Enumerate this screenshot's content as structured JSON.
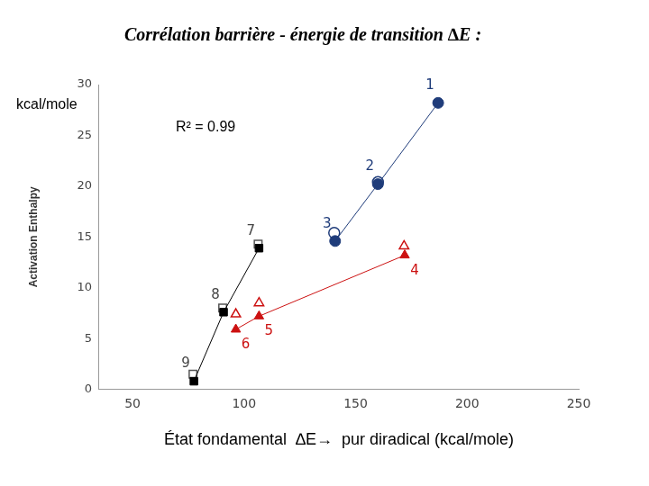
{
  "chart_data": {
    "type": "scatter",
    "title": "Corrélation barrière - énergie de transition ∆E :",
    "x_label": "État fondamental  ∆E→  pur diradical (kcal/mole)",
    "y_label": "Activation Enthalpy",
    "annotations": [
      {
        "text": "kcal/mole"
      },
      {
        "text": "R² = 0.99"
      }
    ],
    "xlim": [
      35,
      250
    ],
    "xticks": [
      50,
      100,
      150,
      200,
      250
    ],
    "ylim": [
      0,
      30
    ],
    "yticks": [
      0,
      5,
      10,
      15,
      20,
      25,
      30
    ],
    "grid": false,
    "series": [
      {
        "color": "#1f3c7a",
        "marker": "circle",
        "line_style": "solid",
        "x": [
          187,
          160,
          140.8
        ],
        "values": [
          28.2,
          20.2,
          14.6
        ],
        "point_labels": [
          "1",
          "2",
          "3"
        ]
      },
      {
        "color": "#cc1111",
        "marker": "triangle",
        "line_style": "solid",
        "x": [
          172,
          106.7,
          96.3
        ],
        "values": [
          13.2,
          7.2,
          5.9
        ],
        "point_labels": [
          "4",
          "5",
          "6"
        ]
      },
      {
        "color": "#000000",
        "marker": "square",
        "line_style": "solid",
        "x": [
          106.7,
          90.8,
          77.5
        ],
        "values": [
          13.9,
          7.6,
          0.8
        ],
        "point_labels": [
          "7",
          "8",
          "9"
        ]
      },
      {
        "color": "#1f3c7a",
        "marker": "open_circle",
        "line_style": "none",
        "x": [
          140.4,
          160
        ],
        "values": [
          15.4,
          20.4
        ]
      },
      {
        "color": "#555555",
        "marker": "open_square",
        "line_style": "none",
        "x": [
          106.3,
          90.4,
          77.1
        ],
        "values": [
          14.3,
          8.0,
          1.5
        ]
      },
      {
        "color": "#cc1111",
        "marker": "open_triangle",
        "line_style": "none",
        "x": [
          171.7,
          106.7,
          96.3
        ],
        "values": [
          14.1,
          8.5,
          7.4
        ]
      }
    ]
  }
}
